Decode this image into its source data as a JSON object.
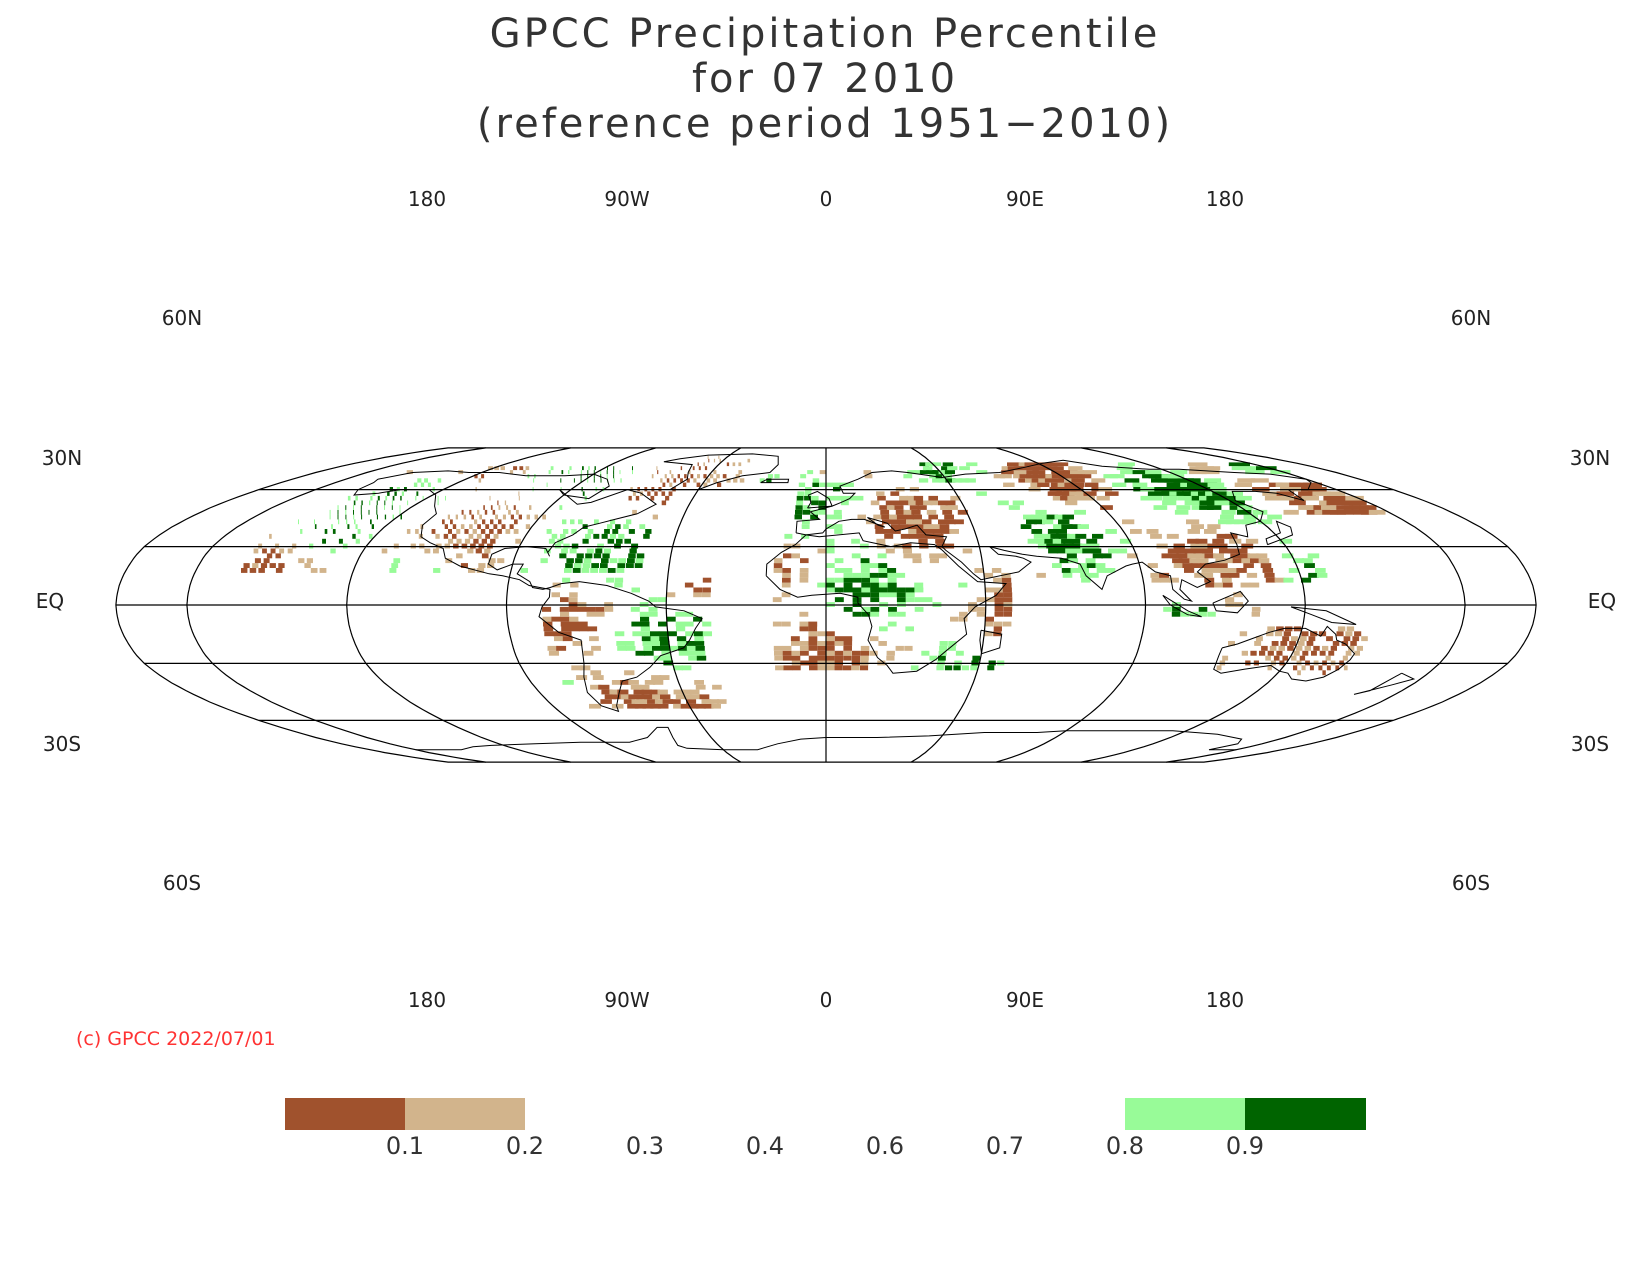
{
  "title": {
    "line1": "GPCC Precipitation Percentile",
    "line2": "for 07 2010",
    "line3": "(reference period 1951−2010)"
  },
  "lon_labels": [
    "180",
    "90W",
    "0",
    "90E",
    "180"
  ],
  "lat_labels": {
    "n60": "60N",
    "n30": "30N",
    "eq": "EQ",
    "s30": "30S",
    "s60": "60S"
  },
  "credit": "(c) GPCC 2022/07/01",
  "legend": {
    "boundaries": [
      "0.1",
      "0.2",
      "0.3",
      "0.4",
      "0.6",
      "0.7",
      "0.8",
      "0.9"
    ],
    "colors": {
      "very_dry": "#a0522d",
      "dry": "#d2b48c",
      "wet": "#98fb98",
      "very_wet": "#006400"
    }
  },
  "colors": {
    "very_dry": "#a0522d",
    "dry": "#d2b48c",
    "wet": "#98fb98",
    "very_wet": "#006400",
    "credit": "#ff3333"
  }
}
